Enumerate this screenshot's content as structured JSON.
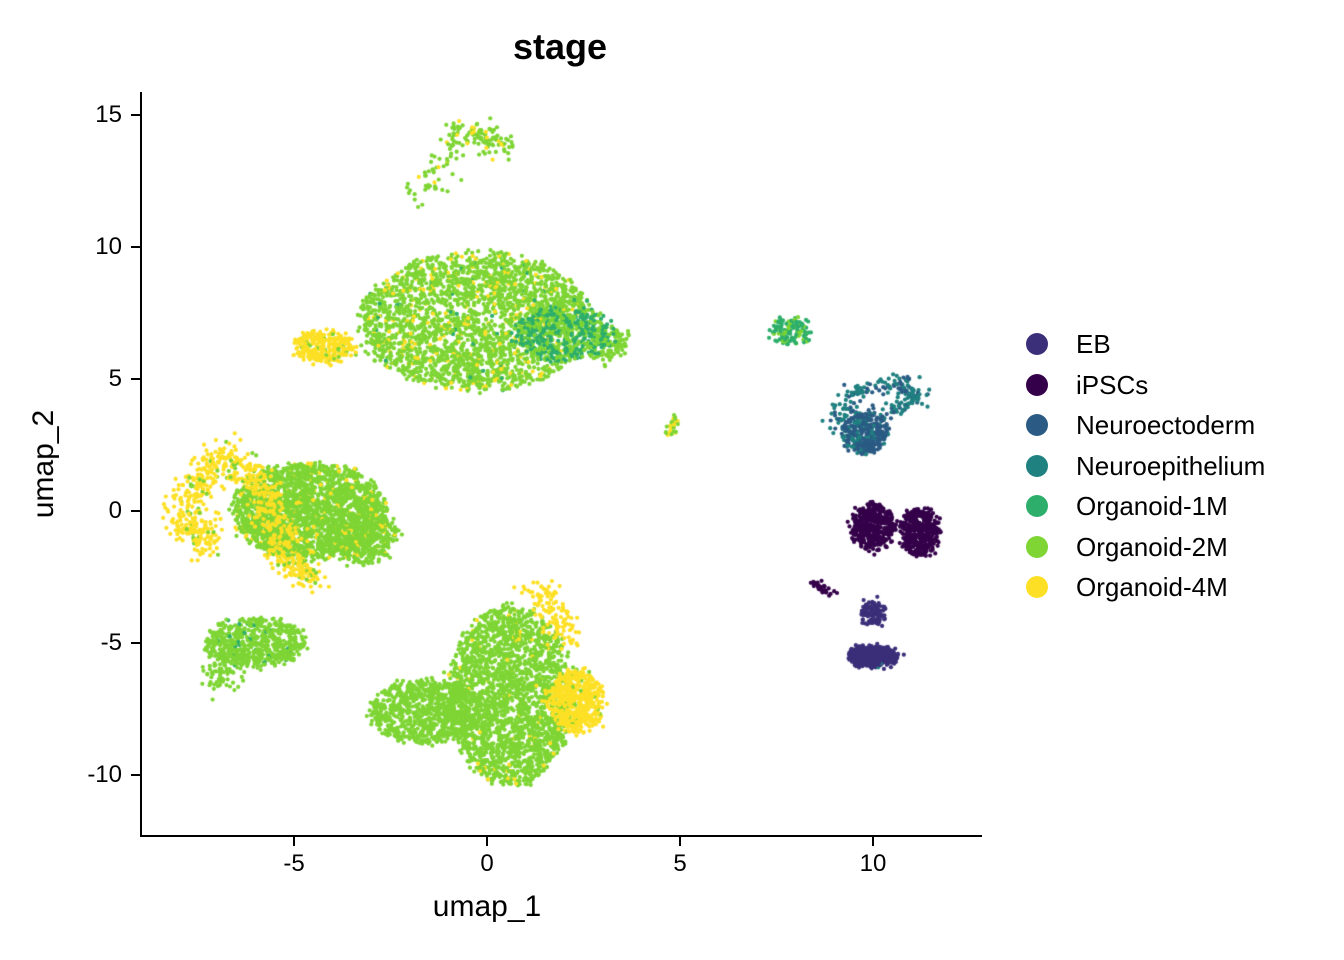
{
  "chart_data": {
    "type": "scatter",
    "title": "stage",
    "xlabel": "umap_1",
    "ylabel": "umap_2",
    "xlim": [
      -8.9,
      12.9
    ],
    "ylim": [
      -12.3,
      16.0
    ],
    "xticks": [
      -5,
      0,
      5,
      10
    ],
    "xtick_labels": [
      "-5",
      "0",
      "5",
      "10"
    ],
    "yticks": [
      -10,
      -5,
      0,
      5,
      10,
      15
    ],
    "ytick_labels": [
      "-10",
      "-5",
      "0",
      "5",
      "10",
      "15"
    ],
    "grid": false,
    "legend_position": "right",
    "legend": [
      {
        "label": "EB",
        "color": "#3B2F7A"
      },
      {
        "label": "iPSCs",
        "color": "#35004A"
      },
      {
        "label": "Neuroectoderm",
        "color": "#2B5B84"
      },
      {
        "label": "Neuroepithelium",
        "color": "#1F8180"
      },
      {
        "label": "Organoid-1M",
        "color": "#2DAF6B"
      },
      {
        "label": "Organoid-2M",
        "color": "#7ED534"
      },
      {
        "label": "Organoid-4M",
        "color": "#FDE025"
      }
    ],
    "clusters": [
      {
        "name": "top-arc",
        "group": "Organoid-2M",
        "points": [
          [
            -1.7,
            11.9
          ],
          [
            -1.2,
            13
          ],
          [
            -0.8,
            14.2
          ],
          [
            -0.3,
            14.4
          ],
          [
            0.2,
            14
          ],
          [
            0.3,
            13.8
          ]
        ],
        "spread": 0.25,
        "n": 160,
        "mix": {
          "Organoid-4M": 0.15
        }
      },
      {
        "name": "upper-main",
        "group": "Organoid-2M",
        "center": [
          -0.3,
          7.2
        ],
        "rx": 3.0,
        "ry": 2.6,
        "n": 2600,
        "mix": {
          "Organoid-4M": 0.1,
          "Organoid-1M": 0.02
        }
      },
      {
        "name": "upper-right-1M",
        "group": "Organoid-1M",
        "center": [
          2.0,
          6.7
        ],
        "rx": 1.3,
        "ry": 1.0,
        "n": 420,
        "mix": {
          "Organoid-2M": 0.35
        }
      },
      {
        "name": "upper-right-tail",
        "group": "Organoid-2M",
        "center": [
          3.1,
          6.3
        ],
        "rx": 0.5,
        "ry": 0.7,
        "n": 120,
        "mix": {}
      },
      {
        "name": "upper-left-4M",
        "group": "Organoid-4M",
        "center": [
          -4.2,
          6.2
        ],
        "rx": 0.8,
        "ry": 0.6,
        "n": 260,
        "mix": {
          "Organoid-2M": 0.1
        }
      },
      {
        "name": "left-main",
        "group": "Organoid-2M",
        "center": [
          -4.6,
          0.0
        ],
        "rx": 2.0,
        "ry": 1.8,
        "n": 2200,
        "mix": {
          "Organoid-4M": 0.08
        }
      },
      {
        "name": "left-arc-4M",
        "group": "Organoid-4M",
        "points": [
          [
            -6.8,
            2.2
          ],
          [
            -7.5,
            1.0
          ],
          [
            -7.8,
            -0.5
          ],
          [
            -7.2,
            -1.3
          ]
        ],
        "spread": 0.3,
        "n": 330,
        "mix": {
          "Organoid-2M": 0.1
        }
      },
      {
        "name": "left-band-4M",
        "group": "Organoid-4M",
        "points": [
          [
            -6.5,
            2.0
          ],
          [
            -6.0,
            1.0
          ],
          [
            -5.5,
            -0.3
          ],
          [
            -5.2,
            -1.8
          ],
          [
            -4.6,
            -2.6
          ]
        ],
        "spread": 0.25,
        "n": 380,
        "mix": {
          "Organoid-2M": 0.15
        }
      },
      {
        "name": "left-right-lobe",
        "group": "Organoid-2M",
        "center": [
          -3.2,
          -1.0
        ],
        "rx": 0.9,
        "ry": 1.0,
        "n": 400,
        "mix": {
          "Organoid-4M": 0.06
        }
      },
      {
        "name": "lower-left",
        "group": "Organoid-2M",
        "center": [
          -6.0,
          -5.0
        ],
        "rx": 1.3,
        "ry": 0.9,
        "n": 600,
        "mix": {
          "Organoid-1M": 0.05
        }
      },
      {
        "name": "lower-left-tail",
        "group": "Organoid-2M",
        "points": [
          [
            -7.0,
            -6.5
          ],
          [
            -6.6,
            -5.4
          ]
        ],
        "spread": 0.3,
        "n": 90,
        "mix": {}
      },
      {
        "name": "bottom-main",
        "group": "Organoid-2M",
        "center": [
          0.6,
          -7.0
        ],
        "rx": 1.6,
        "ry": 3.4,
        "n": 2300,
        "mix": {
          "Organoid-4M": 0.03
        }
      },
      {
        "name": "bottom-left-wing",
        "group": "Organoid-2M",
        "center": [
          -1.6,
          -7.6
        ],
        "rx": 1.4,
        "ry": 1.2,
        "n": 800,
        "mix": {}
      },
      {
        "name": "bottom-right-4M",
        "group": "Organoid-4M",
        "center": [
          2.3,
          -7.2
        ],
        "rx": 0.7,
        "ry": 1.2,
        "n": 520,
        "mix": {
          "Organoid-2M": 0.08
        }
      },
      {
        "name": "bottom-right-4M-arm",
        "group": "Organoid-4M",
        "points": [
          [
            1.3,
            -2.8
          ],
          [
            1.7,
            -3.8
          ],
          [
            2.0,
            -5.0
          ]
        ],
        "spread": 0.25,
        "n": 120,
        "mix": {}
      },
      {
        "name": "mid-small",
        "group": "Organoid-2M",
        "points": [
          [
            4.7,
            2.9
          ],
          [
            4.9,
            3.6
          ]
        ],
        "spread": 0.08,
        "n": 30,
        "mix": {
          "Organoid-4M": 0.3
        }
      },
      {
        "name": "right-top",
        "group": "Organoid-1M",
        "center": [
          7.9,
          6.8
        ],
        "rx": 0.5,
        "ry": 0.5,
        "n": 130,
        "mix": {
          "Organoid-2M": 0.3
        }
      },
      {
        "name": "neuroectoderm",
        "group": "Neuroectoderm",
        "center": [
          9.8,
          3.0
        ],
        "rx": 0.55,
        "ry": 0.8,
        "n": 360,
        "mix": {
          "Neuroepithelium": 0.25
        }
      },
      {
        "name": "neuroepithelium-ring",
        "group": "Neuroepithelium",
        "points": [
          [
            9.0,
            3.2
          ],
          [
            9.5,
            4.5
          ],
          [
            10.7,
            4.9
          ],
          [
            11.2,
            4.3
          ],
          [
            10.5,
            3.7
          ]
        ],
        "spread": 0.15,
        "n": 200,
        "mix": {
          "Neuroectoderm": 0.3
        }
      },
      {
        "name": "ipscs-left",
        "group": "iPSCs",
        "center": [
          10.0,
          -0.6
        ],
        "rx": 0.5,
        "ry": 0.9,
        "n": 420,
        "mix": {}
      },
      {
        "name": "ipscs-right",
        "group": "iPSCs",
        "center": [
          11.2,
          -0.8
        ],
        "rx": 0.45,
        "ry": 0.9,
        "n": 420,
        "mix": {}
      },
      {
        "name": "ipscs-small",
        "group": "iPSCs",
        "points": [
          [
            8.4,
            -2.7
          ],
          [
            8.9,
            -3.1
          ]
        ],
        "spread": 0.07,
        "n": 30,
        "mix": {}
      },
      {
        "name": "eb-top",
        "group": "EB",
        "center": [
          10.0,
          -3.9
        ],
        "rx": 0.25,
        "ry": 0.45,
        "n": 110,
        "mix": {}
      },
      {
        "name": "eb-main",
        "group": "EB",
        "center": [
          10.0,
          -5.5
        ],
        "rx": 0.6,
        "ry": 0.4,
        "n": 460,
        "mix": {
          "Neuroepithelium": 0.01
        }
      }
    ]
  }
}
